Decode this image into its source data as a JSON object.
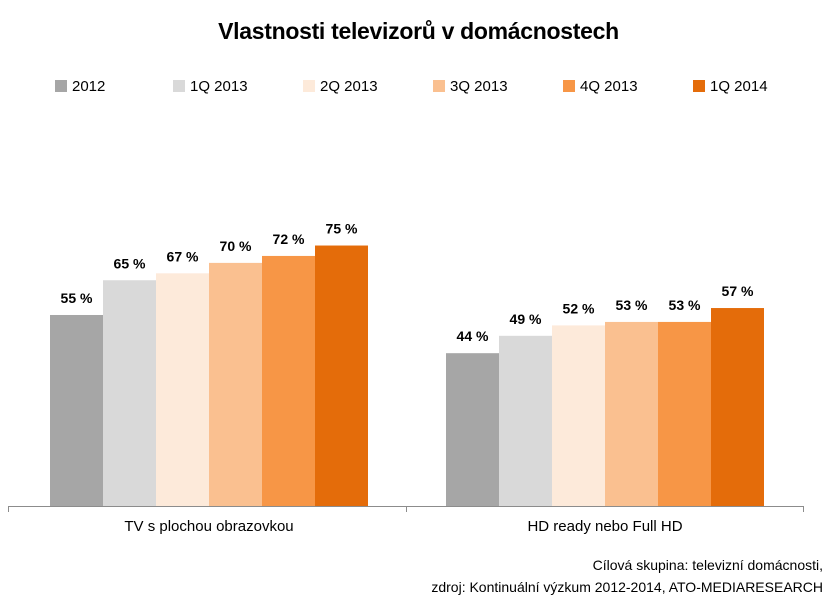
{
  "chart_data": {
    "type": "bar",
    "title": "Vlastnosti televizorů v domácnostech",
    "categories": [
      "TV s plochou obrazovkou",
      "HD ready nebo Full HD"
    ],
    "series": [
      {
        "name": "2012",
        "color": "#a6a6a6",
        "values": [
          55,
          44
        ],
        "labels": [
          "55 %",
          "44 %"
        ]
      },
      {
        "name": "1Q 2013",
        "color": "#d9d9d9",
        "values": [
          65,
          49
        ],
        "labels": [
          "65 %",
          "49 %"
        ]
      },
      {
        "name": "2Q 2013",
        "color": "#fdeada",
        "values": [
          67,
          52
        ],
        "labels": [
          "67 %",
          "52 %"
        ]
      },
      {
        "name": "3Q 2013",
        "color": "#fac090",
        "values": [
          70,
          53
        ],
        "labels": [
          "70 %",
          "53 %"
        ]
      },
      {
        "name": "4Q 2013",
        "color": "#f79646",
        "values": [
          72,
          53
        ],
        "labels": [
          "72 %",
          "53 %"
        ]
      },
      {
        "name": "1Q 2014",
        "color": "#e46c0a",
        "values": [
          75,
          57
        ],
        "labels": [
          "75 %",
          "57 %"
        ]
      }
    ],
    "ylim": [
      0,
      100
    ],
    "grid": false,
    "legend": "top"
  },
  "footer": {
    "line1": "Cílová skupina: televizní domácnosti,",
    "line2": "zdroj: Kontinuální výzkum 2012-2014, ATO-MEDIARESEARCH"
  }
}
